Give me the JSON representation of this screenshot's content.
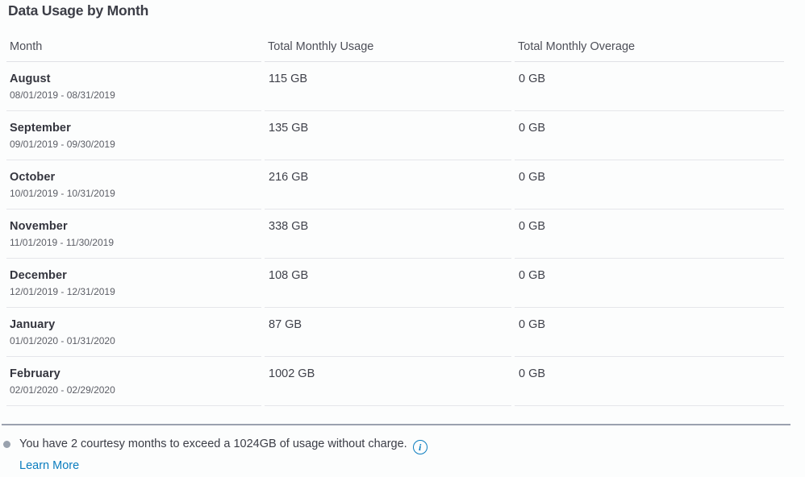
{
  "title": "Data Usage by Month",
  "table": {
    "columns": [
      "Month",
      "Total Monthly Usage",
      "Total Monthly Overage"
    ],
    "rows": [
      {
        "month": "August",
        "range": "08/01/2019 - 08/31/2019",
        "usage": "115 GB",
        "overage": "0 GB"
      },
      {
        "month": "September",
        "range": "09/01/2019 - 09/30/2019",
        "usage": "135 GB",
        "overage": "0 GB"
      },
      {
        "month": "October",
        "range": "10/01/2019 - 10/31/2019",
        "usage": "216 GB",
        "overage": "0 GB"
      },
      {
        "month": "November",
        "range": "11/01/2019 - 11/30/2019",
        "usage": "338 GB",
        "overage": "0 GB"
      },
      {
        "month": "December",
        "range": "12/01/2019 - 12/31/2019",
        "usage": "108 GB",
        "overage": "0 GB"
      },
      {
        "month": "January",
        "range": "01/01/2020 - 01/31/2020",
        "usage": "87 GB",
        "overage": "0 GB"
      },
      {
        "month": "February",
        "range": "02/01/2020 - 02/29/2020",
        "usage": "1002 GB",
        "overage": "0 GB"
      }
    ]
  },
  "footnote": {
    "text": "You have 2 courtesy months to exceed a 1024GB of usage without charge.",
    "info_glyph": "i",
    "link_label": "Learn More"
  },
  "colors": {
    "accent_blue": "#0b7dbf",
    "heading_text": "#3b3d46",
    "muted_text": "#5c5e66",
    "divider": "#e5e6ea",
    "footer_rule": "#9ba1af"
  }
}
